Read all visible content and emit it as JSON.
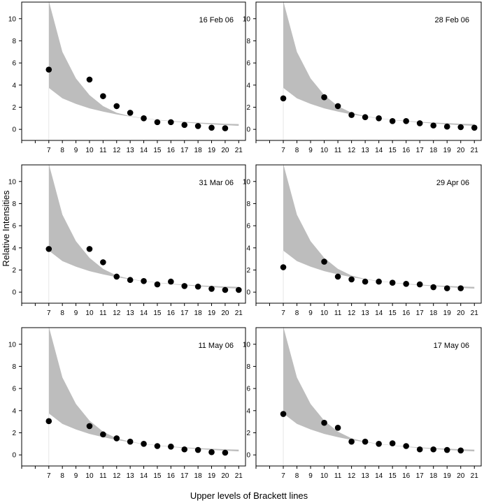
{
  "figure": {
    "ylabel": "Relative Intensities",
    "xlabel": "Upper levels of Brackett lines"
  },
  "colors": {
    "band": "#bdbdbd",
    "points": "#000000",
    "frame": "#000000",
    "guide": "#e6e6e6"
  },
  "chart_data": [
    {
      "type": "scatter",
      "title": "16 Feb 06",
      "xlim": [
        5,
        21.5
      ],
      "ylim": [
        -1,
        11.5
      ],
      "x_ticks": [
        7,
        8,
        9,
        10,
        11,
        12,
        13,
        14,
        15,
        16,
        17,
        18,
        19,
        20,
        21
      ],
      "y_ticks": [
        0,
        2,
        4,
        6,
        8,
        10
      ],
      "band": {
        "x": [
          7,
          8,
          9,
          10,
          11,
          12,
          13,
          14,
          15,
          16,
          17,
          18,
          19,
          20,
          21
        ],
        "lower": [
          3.75,
          2.8,
          2.3,
          1.9,
          1.6,
          1.35,
          1.15,
          0.98,
          0.85,
          0.72,
          0.62,
          0.53,
          0.45,
          0.38,
          0.32
        ],
        "upper": [
          11.6,
          7.0,
          4.6,
          3.1,
          2.1,
          1.5,
          1.2,
          1.0,
          0.87,
          0.76,
          0.68,
          0.61,
          0.56,
          0.51,
          0.48
        ]
      },
      "points": {
        "x": [
          7,
          10,
          11,
          12,
          13,
          14,
          15,
          16,
          17,
          18,
          19,
          20
        ],
        "y": [
          5.4,
          4.5,
          3.0,
          2.1,
          1.5,
          1.0,
          0.65,
          0.65,
          0.4,
          0.3,
          0.15,
          0.1
        ]
      }
    },
    {
      "type": "scatter",
      "title": "28 Feb 06",
      "xlim": [
        5,
        21.5
      ],
      "ylim": [
        -1,
        11.5
      ],
      "x_ticks": [
        7,
        8,
        9,
        10,
        11,
        12,
        13,
        14,
        15,
        16,
        17,
        18,
        19,
        20,
        21
      ],
      "y_ticks": [
        0,
        2,
        4,
        6,
        8,
        10
      ],
      "band": {
        "x": [
          7,
          8,
          9,
          10,
          11,
          12,
          13,
          14,
          15,
          16,
          17,
          18,
          19,
          20,
          21
        ],
        "lower": [
          3.75,
          2.8,
          2.3,
          1.9,
          1.6,
          1.35,
          1.15,
          0.98,
          0.85,
          0.72,
          0.62,
          0.53,
          0.45,
          0.38,
          0.32
        ],
        "upper": [
          11.6,
          7.0,
          4.6,
          3.1,
          2.1,
          1.5,
          1.2,
          1.0,
          0.87,
          0.76,
          0.68,
          0.61,
          0.56,
          0.51,
          0.48
        ]
      },
      "points": {
        "x": [
          7,
          10,
          11,
          12,
          13,
          14,
          15,
          16,
          17,
          18,
          19,
          20,
          21
        ],
        "y": [
          2.8,
          2.9,
          2.1,
          1.3,
          1.1,
          1.0,
          0.75,
          0.75,
          0.55,
          0.35,
          0.25,
          0.2,
          0.15
        ]
      }
    },
    {
      "type": "scatter",
      "title": "31 Mar 06",
      "xlim": [
        5,
        21.5
      ],
      "ylim": [
        -1,
        11.5
      ],
      "x_ticks": [
        7,
        8,
        9,
        10,
        11,
        12,
        13,
        14,
        15,
        16,
        17,
        18,
        19,
        20,
        21
      ],
      "y_ticks": [
        0,
        2,
        4,
        6,
        8,
        10
      ],
      "band": {
        "x": [
          7,
          8,
          9,
          10,
          11,
          12,
          13,
          14,
          15,
          16,
          17,
          18,
          19,
          20,
          21
        ],
        "lower": [
          3.75,
          2.8,
          2.3,
          1.9,
          1.6,
          1.35,
          1.15,
          0.98,
          0.85,
          0.72,
          0.62,
          0.53,
          0.45,
          0.38,
          0.32
        ],
        "upper": [
          11.6,
          7.0,
          4.6,
          3.1,
          2.1,
          1.5,
          1.2,
          1.0,
          0.87,
          0.76,
          0.68,
          0.61,
          0.56,
          0.51,
          0.48
        ]
      },
      "points": {
        "x": [
          7,
          10,
          11,
          12,
          13,
          14,
          15,
          16,
          17,
          18,
          19,
          20,
          21
        ],
        "y": [
          3.9,
          3.9,
          2.7,
          1.4,
          1.1,
          1.0,
          0.7,
          0.95,
          0.55,
          0.5,
          0.3,
          0.2,
          0.2
        ]
      }
    },
    {
      "type": "scatter",
      "title": "29 Apr 06",
      "xlim": [
        5,
        21.5
      ],
      "ylim": [
        -1,
        11.5
      ],
      "x_ticks": [
        7,
        8,
        9,
        10,
        11,
        12,
        13,
        14,
        15,
        16,
        17,
        18,
        19,
        20,
        21
      ],
      "y_ticks": [
        0,
        2,
        4,
        6,
        8,
        10
      ],
      "band": {
        "x": [
          7,
          8,
          9,
          10,
          11,
          12,
          13,
          14,
          15,
          16,
          17,
          18,
          19,
          20,
          21
        ],
        "lower": [
          3.75,
          2.8,
          2.3,
          1.9,
          1.6,
          1.35,
          1.15,
          0.98,
          0.85,
          0.72,
          0.62,
          0.53,
          0.45,
          0.38,
          0.32
        ],
        "upper": [
          11.6,
          7.0,
          4.6,
          3.1,
          2.1,
          1.5,
          1.2,
          1.0,
          0.87,
          0.76,
          0.68,
          0.61,
          0.56,
          0.51,
          0.48
        ]
      },
      "points": {
        "x": [
          7,
          10,
          11,
          12,
          13,
          14,
          15,
          16,
          17,
          18,
          19,
          20
        ],
        "y": [
          2.25,
          2.75,
          1.4,
          1.15,
          0.95,
          0.95,
          0.85,
          0.75,
          0.7,
          0.45,
          0.35,
          0.35
        ]
      }
    },
    {
      "type": "scatter",
      "title": "11 May 06",
      "xlim": [
        5,
        21.5
      ],
      "ylim": [
        -1,
        11.5
      ],
      "x_ticks": [
        7,
        8,
        9,
        10,
        11,
        12,
        13,
        14,
        15,
        16,
        17,
        18,
        19,
        20,
        21
      ],
      "y_ticks": [
        0,
        2,
        4,
        6,
        8,
        10
      ],
      "band": {
        "x": [
          7,
          8,
          9,
          10,
          11,
          12,
          13,
          14,
          15,
          16,
          17,
          18,
          19,
          20,
          21
        ],
        "lower": [
          3.75,
          2.8,
          2.3,
          1.9,
          1.6,
          1.35,
          1.15,
          0.98,
          0.85,
          0.72,
          0.62,
          0.53,
          0.45,
          0.38,
          0.32
        ],
        "upper": [
          11.6,
          7.0,
          4.6,
          3.1,
          2.1,
          1.5,
          1.2,
          1.0,
          0.87,
          0.76,
          0.68,
          0.61,
          0.56,
          0.51,
          0.48
        ]
      },
      "points": {
        "x": [
          7,
          10,
          11,
          12,
          13,
          14,
          15,
          16,
          17,
          18,
          19,
          20
        ],
        "y": [
          3.05,
          2.6,
          1.85,
          1.5,
          1.2,
          1.0,
          0.8,
          0.75,
          0.5,
          0.45,
          0.25,
          0.2
        ]
      }
    },
    {
      "type": "scatter",
      "title": "17 May 06",
      "xlim": [
        5,
        21.5
      ],
      "ylim": [
        -1,
        11.5
      ],
      "x_ticks": [
        7,
        8,
        9,
        10,
        11,
        12,
        13,
        14,
        15,
        16,
        17,
        18,
        19,
        20,
        21
      ],
      "y_ticks": [
        0,
        2,
        4,
        6,
        8,
        10
      ],
      "band": {
        "x": [
          7,
          8,
          9,
          10,
          11,
          12,
          13,
          14,
          15,
          16,
          17,
          18,
          19,
          20,
          21
        ],
        "lower": [
          3.75,
          2.8,
          2.3,
          1.9,
          1.6,
          1.35,
          1.15,
          0.98,
          0.85,
          0.72,
          0.62,
          0.53,
          0.45,
          0.38,
          0.32
        ],
        "upper": [
          11.6,
          7.0,
          4.6,
          3.1,
          2.1,
          1.5,
          1.2,
          1.0,
          0.87,
          0.76,
          0.68,
          0.61,
          0.56,
          0.51,
          0.48
        ]
      },
      "points": {
        "x": [
          7,
          10,
          11,
          12,
          13,
          14,
          15,
          16,
          17,
          18,
          19,
          20
        ],
        "y": [
          3.7,
          2.9,
          2.45,
          1.2,
          1.2,
          1.0,
          1.05,
          0.8,
          0.5,
          0.5,
          0.45,
          0.4
        ]
      }
    }
  ]
}
